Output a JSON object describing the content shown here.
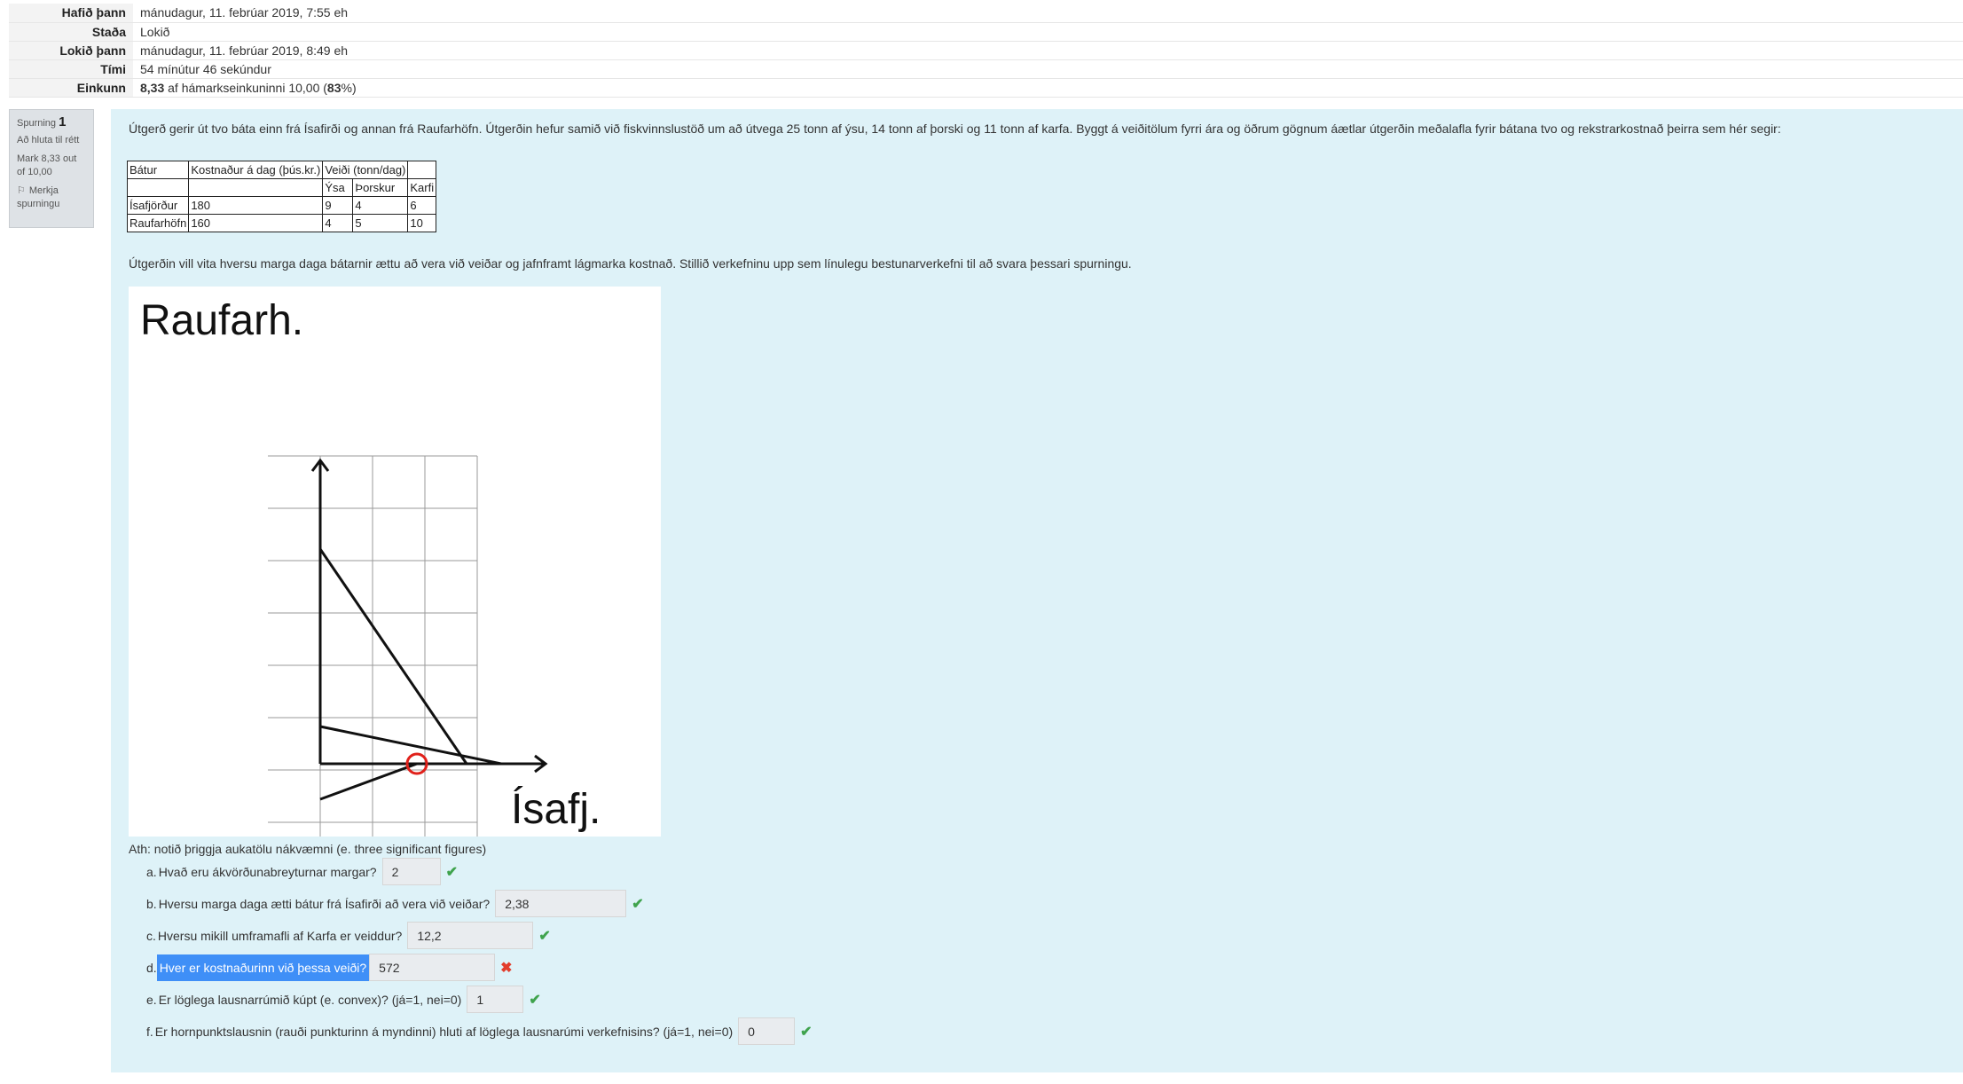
{
  "summary": [
    {
      "label": "Hafið þann",
      "value": "mánudagur, 11. febrúar 2019, 7:55 eh"
    },
    {
      "label": "Staða",
      "value": "Lokið"
    },
    {
      "label": "Lokið þann",
      "value": "mánudagur, 11. febrúar 2019, 8:49 eh"
    },
    {
      "label": "Tími",
      "value": "54 mínútur 46 sekúndur"
    },
    {
      "label": "Einkunn",
      "grade": "8,33",
      "grade_mid": " af hámarkseinkuninni 10,00 (",
      "percent": "83",
      "grade_end": "%)"
    }
  ],
  "qinfo": {
    "spurning_label": "Spurning",
    "number": "1",
    "state": "Að hluta til rétt",
    "mark": "Mark 8,33 out of 10,00",
    "flag_label": "Merkja spurningu"
  },
  "question": {
    "intro": "Útgerð gerir út tvo báta einn frá Ísafirði og annan frá Raufarhöfn. Útgerðin hefur samið við fiskvinnslustöð um að útvega 25 tonn af ýsu, 14 tonn af þorski og 11 tonn af karfa. Byggt á veiðitölum fyrri ára og öðrum gögnum áætlar útgerðin meðalafla fyrir bátana tvo og rekstrarkostnað þeirra sem hér segir:",
    "table": {
      "header1": [
        "Bátur",
        "Kostnaður á dag (þús.kr.)",
        "Veiði (tonn/dag)",
        "",
        ""
      ],
      "header2": [
        "",
        "",
        "Ýsa",
        "Þorskur",
        "Karfi"
      ],
      "rows": [
        [
          "Ísafjörður",
          "180",
          "9",
          "4",
          "6"
        ],
        [
          "Raufarhöfn",
          "160",
          "4",
          "5",
          "10"
        ]
      ]
    },
    "task": "Útgerðin vill vita hversu marga daga bátarnir ættu að vera við veiðar og jafnframt lágmarka kostnað. Stillið verkefninu upp sem línulegu bestunarverkefni til að svara þessari spurningu.",
    "graph": {
      "y_label": "Raufarh.",
      "x_label": "Ísafj."
    },
    "ath": "Ath: notið þriggja aukatölu nákvæmni (e. three significant figures)",
    "answers": [
      {
        "letter": "a.",
        "prompt": "Hvað eru ákvörðunabreyturnar margar?",
        "value": "2",
        "status": "ok"
      },
      {
        "letter": "b.",
        "prompt": "Hversu marga daga ætti bátur frá Ísafirði að vera við veiðar?",
        "value": "2,38",
        "status": "ok"
      },
      {
        "letter": "c.",
        "prompt": "Hversu mikill umframafli af Karfa er veiddur?",
        "value": "12,2",
        "status": "ok"
      },
      {
        "letter": "d.",
        "prompt": "Hver er kostnaðurinn við þessa veiði?",
        "value": "572",
        "status": "bad"
      },
      {
        "letter": "e.",
        "prompt": "Er löglega lausnarrúmið kúpt (e. convex)? (já=1, nei=0)",
        "value": "1",
        "status": "ok"
      },
      {
        "letter": "f.",
        "prompt": "Er hornpunktslausnin (rauði punkturinn á myndinni) hluti af löglega lausnarúmi verkefnisins? (já=1, nei=0)",
        "value": "0",
        "status": "ok"
      }
    ],
    "marks": {
      "ok": "✔",
      "bad": "✖"
    }
  },
  "colors": {
    "content_bg": "#def2f8",
    "highlight": "#3f8ff7",
    "correct": "#3fa34d",
    "incorrect": "#e23d2c",
    "corner_point": "#e0201a"
  }
}
